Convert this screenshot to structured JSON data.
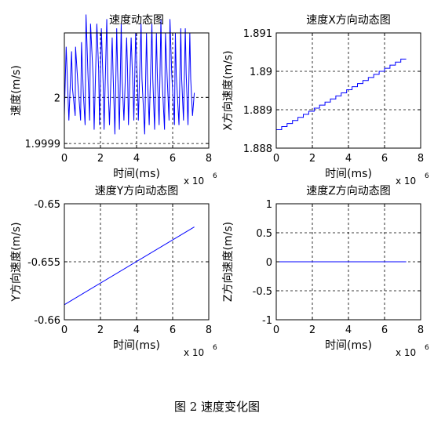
{
  "figure_caption": "图 2  速度变化图",
  "chart_data": [
    {
      "id": "speed",
      "type": "line",
      "title": "速度动态图",
      "xlabel": "时间(ms)",
      "ylabel": "速度(m/s)",
      "x_exponent_label": "x 10",
      "x_exponent": "6",
      "xlim": [
        0,
        8
      ],
      "ylim": [
        1.99989,
        2.00014
      ],
      "x_ticks": [
        0,
        2,
        4,
        6,
        8
      ],
      "x_tick_labels": [
        "0",
        "2",
        "4",
        "6",
        "8"
      ],
      "y_ticks": [
        1.9999,
        2.0
      ],
      "y_tick_labels": [
        "1.9999",
        "2"
      ],
      "grid": true,
      "series": [
        {
          "color": "#0000ff",
          "x": [
            0.0,
            0.1,
            0.15,
            0.25,
            0.4,
            0.45,
            0.6,
            0.62,
            0.75,
            0.9,
            0.95,
            1.05,
            1.15,
            1.2,
            1.3,
            1.4,
            1.45,
            1.6,
            1.65,
            1.8,
            1.9,
            1.95,
            2.05,
            2.15,
            2.2,
            2.35,
            2.4,
            2.5,
            2.65,
            2.7,
            2.8,
            2.9,
            2.95,
            3.05,
            3.15,
            3.2,
            3.3,
            3.45,
            3.5,
            3.55,
            3.7,
            3.8,
            3.85,
            3.95,
            4.05,
            4.1,
            4.25,
            4.3,
            4.45,
            4.55,
            4.6,
            4.7,
            4.85,
            4.9,
            5.0,
            5.1,
            5.15,
            5.25,
            5.35,
            5.4,
            5.55,
            5.6,
            5.7,
            5.8,
            5.85,
            5.95,
            6.1,
            6.15,
            6.2,
            6.35,
            6.45,
            6.5,
            6.6,
            6.7,
            6.75,
            6.85,
            6.95,
            7.0,
            7.1,
            7.2
          ],
          "y": [
            1.99996,
            2.00011,
            2.00006,
            1.99995,
            2.0001,
            2.00002,
            1.99996,
            2.00011,
            2.00003,
            1.99995,
            2.00012,
            2.00001,
            1.99994,
            2.00018,
            2.00006,
            1.99995,
            2.00016,
            2.00004,
            1.99993,
            2.00016,
            2.00006,
            1.99994,
            2.00015,
            2.00003,
            1.99993,
            2.00017,
            2.00005,
            1.99994,
            2.00013,
            2.00005,
            1.99992,
            2.00015,
            2.00006,
            1.99993,
            2.00016,
            2.00004,
            1.99995,
            2.00013,
            2.00006,
            1.99994,
            2.00013,
            2.00002,
            1.99995,
            2.00014,
            2.00003,
            1.99995,
            2.00016,
            2.00004,
            1.99992,
            2.00014,
            2.00005,
            1.99994,
            2.00016,
            2.00004,
            1.99993,
            2.00014,
            2.00005,
            1.99994,
            2.00017,
            2.00005,
            1.99993,
            2.00014,
            2.00004,
            1.99995,
            2.00017,
            2.00005,
            1.99994,
            2.00014,
            2.00005,
            1.99994,
            2.00015,
            2.00004,
            1.99995,
            2.00015,
            2.00005,
            1.99994,
            2.00014,
            2.00004,
            1.99996,
            2.00001
          ]
        }
      ]
    },
    {
      "id": "speed-x",
      "type": "line",
      "title": "速度X方向动态图",
      "xlabel": "时间(ms)",
      "ylabel": "X方向速度(m/s)",
      "x_exponent_label": "x 10",
      "x_exponent": "6",
      "xlim": [
        0,
        8
      ],
      "ylim": [
        1.888,
        1.891
      ],
      "x_ticks": [
        0,
        2,
        4,
        6,
        8
      ],
      "x_tick_labels": [
        "0",
        "2",
        "4",
        "6",
        "8"
      ],
      "y_ticks": [
        1.888,
        1.889,
        1.89,
        1.891
      ],
      "y_tick_labels": [
        "1.888",
        "1.889",
        "1.89",
        "1.891"
      ],
      "grid": true,
      "series": [
        {
          "color": "#0000ff",
          "x": [
            0,
            0.3,
            0.3,
            0.6,
            0.6,
            0.9,
            0.9,
            1.2,
            1.2,
            1.5,
            1.5,
            1.8,
            1.8,
            2.1,
            2.1,
            2.4,
            2.4,
            2.7,
            2.7,
            3.0,
            3.0,
            3.3,
            3.3,
            3.6,
            3.6,
            3.9,
            3.9,
            4.2,
            4.2,
            4.5,
            4.5,
            4.8,
            4.8,
            5.1,
            5.1,
            5.4,
            5.4,
            5.7,
            5.7,
            6.0,
            6.0,
            6.3,
            6.3,
            6.6,
            6.6,
            6.9,
            6.9,
            7.2
          ],
          "y": [
            1.88848,
            1.88848,
            1.88856,
            1.88856,
            1.88864,
            1.88864,
            1.88872,
            1.88872,
            1.8888,
            1.8888,
            1.88888,
            1.88888,
            1.88896,
            1.88896,
            1.88904,
            1.88904,
            1.88912,
            1.88912,
            1.8892,
            1.8892,
            1.88928,
            1.88928,
            1.88936,
            1.88936,
            1.88944,
            1.88944,
            1.88952,
            1.88952,
            1.8896,
            1.8896,
            1.88968,
            1.88968,
            1.88976,
            1.88976,
            1.88984,
            1.88984,
            1.88992,
            1.88992,
            1.89,
            1.89,
            1.89008,
            1.89008,
            1.89016,
            1.89016,
            1.89024,
            1.89024,
            1.89032,
            1.89032
          ]
        }
      ]
    },
    {
      "id": "speed-y",
      "type": "line",
      "title": "速度Y方向动态图",
      "xlabel": "时间(ms)",
      "ylabel": "Y方向速度(m/s)",
      "x_exponent_label": "x 10",
      "x_exponent": "6",
      "xlim": [
        0,
        8
      ],
      "ylim": [
        -0.66,
        -0.65
      ],
      "x_ticks": [
        0,
        2,
        4,
        6,
        8
      ],
      "x_tick_labels": [
        "0",
        "2",
        "4",
        "6",
        "8"
      ],
      "y_ticks": [
        -0.66,
        -0.655,
        -0.65
      ],
      "y_tick_labels": [
        "-0.66",
        "-0.655",
        "-0.65"
      ],
      "grid": true,
      "series": [
        {
          "color": "#0000ff",
          "x": [
            0,
            7.2
          ],
          "y": [
            -0.6587,
            -0.652
          ]
        }
      ]
    },
    {
      "id": "speed-z",
      "type": "line",
      "title": "速度Z方向动态图",
      "xlabel": "时间(ms)",
      "ylabel": "Z方向速度(m/s)",
      "x_exponent_label": "x 10",
      "x_exponent": "6",
      "xlim": [
        0,
        8
      ],
      "ylim": [
        -1,
        1
      ],
      "x_ticks": [
        0,
        2,
        4,
        6,
        8
      ],
      "x_tick_labels": [
        "0",
        "2",
        "4",
        "6",
        "8"
      ],
      "y_ticks": [
        -1,
        -0.5,
        0,
        0.5,
        1
      ],
      "y_tick_labels": [
        "-1",
        "-0.5",
        "0",
        "0.5",
        "1"
      ],
      "grid": true,
      "series": [
        {
          "color": "#0000ff",
          "x": [
            0,
            7.2
          ],
          "y": [
            0,
            0
          ]
        }
      ]
    }
  ]
}
